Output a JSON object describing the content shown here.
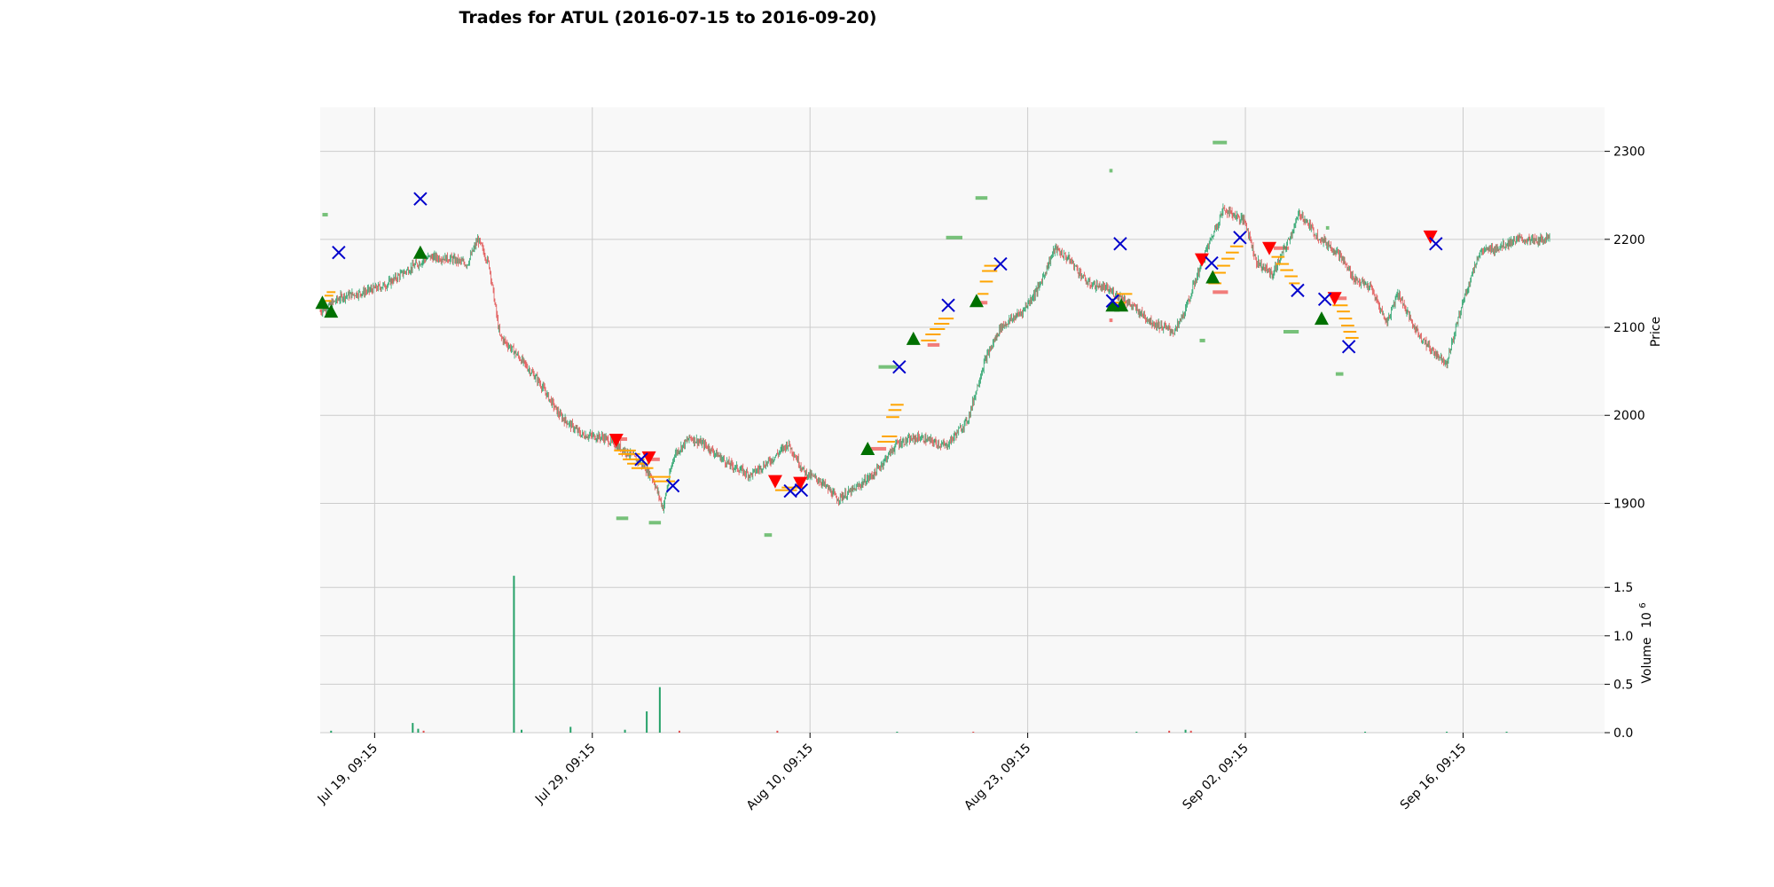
{
  "chart_data": {
    "type": "candlestick",
    "title": "Trades for ATUL (2016-07-15 to 2016-09-20)",
    "colors": {
      "up": "#26a269",
      "down": "#e05050",
      "buy_marker": "#007000",
      "sell_marker": "#ff0000",
      "exit_marker": "#0000cc",
      "level_line": "#ffa500",
      "zone_green": "#4caf50",
      "zone_red": "#ef5350",
      "panel_bg": "#f8f8f8",
      "grid": "#cccccc"
    },
    "x_axis": {
      "tick_labels": [
        "Jul 19, 09:15",
        "Jul 29, 09:15",
        "Aug 10, 09:15",
        "Aug 23, 09:15",
        "Sep 02, 09:15",
        "Sep 16, 09:15"
      ],
      "tick_positions": [
        0.5,
        2.5,
        4.5,
        6.5,
        8.5,
        10.5
      ],
      "range": [
        0,
        11.8
      ]
    },
    "price_panel": {
      "ylabel": "Price",
      "ylim": [
        1843,
        2350
      ],
      "yticks": [
        1900,
        2000,
        2100,
        2200,
        2300
      ],
      "grid": true
    },
    "volume_panel": {
      "ylabel": "Volume  10^6",
      "ylabel_main": "Volume",
      "ylabel_exp": "10",
      "ylabel_sup": "6",
      "ylim": [
        0,
        1.85
      ],
      "yticks": [
        "0.0",
        "0.5",
        "1.0",
        "1.5"
      ],
      "ytick_values": [
        0,
        0.5,
        1.0,
        1.5
      ],
      "grid": true
    },
    "price_path": [
      [
        0.0,
        2118
      ],
      [
        0.2,
        2135
      ],
      [
        0.4,
        2140
      ],
      [
        0.6,
        2148
      ],
      [
        0.8,
        2165
      ],
      [
        1.0,
        2180
      ],
      [
        1.2,
        2178
      ],
      [
        1.35,
        2172
      ],
      [
        1.45,
        2200
      ],
      [
        1.55,
        2172
      ],
      [
        1.65,
        2090
      ],
      [
        1.8,
        2070
      ],
      [
        2.0,
        2040
      ],
      [
        2.2,
        2000
      ],
      [
        2.4,
        1978
      ],
      [
        2.6,
        1975
      ],
      [
        2.8,
        1960
      ],
      [
        2.95,
        1945
      ],
      [
        3.05,
        1930
      ],
      [
        3.15,
        1895
      ],
      [
        3.25,
        1955
      ],
      [
        3.4,
        1975
      ],
      [
        3.55,
        1965
      ],
      [
        3.75,
        1945
      ],
      [
        3.95,
        1932
      ],
      [
        4.15,
        1950
      ],
      [
        4.3,
        1968
      ],
      [
        4.45,
        1935
      ],
      [
        4.6,
        1925
      ],
      [
        4.75,
        1905
      ],
      [
        4.9,
        1915
      ],
      [
        5.1,
        1935
      ],
      [
        5.3,
        1968
      ],
      [
        5.5,
        1975
      ],
      [
        5.75,
        1965
      ],
      [
        5.95,
        1995
      ],
      [
        6.1,
        2060
      ],
      [
        6.25,
        2100
      ],
      [
        6.45,
        2118
      ],
      [
        6.6,
        2145
      ],
      [
        6.75,
        2190
      ],
      [
        6.9,
        2175
      ],
      [
        7.05,
        2150
      ],
      [
        7.2,
        2145
      ],
      [
        7.35,
        2135
      ],
      [
        7.5,
        2120
      ],
      [
        7.65,
        2105
      ],
      [
        7.85,
        2095
      ],
      [
        7.95,
        2120
      ],
      [
        8.1,
        2175
      ],
      [
        8.3,
        2235
      ],
      [
        8.5,
        2220
      ],
      [
        8.6,
        2175
      ],
      [
        8.75,
        2160
      ],
      [
        8.9,
        2200
      ],
      [
        9.0,
        2230
      ],
      [
        9.15,
        2205
      ],
      [
        9.35,
        2185
      ],
      [
        9.5,
        2155
      ],
      [
        9.65,
        2145
      ],
      [
        9.8,
        2105
      ],
      [
        9.9,
        2140
      ],
      [
        10.05,
        2100
      ],
      [
        10.2,
        2075
      ],
      [
        10.35,
        2060
      ],
      [
        10.5,
        2130
      ],
      [
        10.65,
        2185
      ],
      [
        10.8,
        2190
      ],
      [
        11.0,
        2200
      ],
      [
        11.2,
        2198
      ],
      [
        11.3,
        2205
      ]
    ],
    "volume_bars": [
      {
        "x": 0.1,
        "v": 0.02,
        "dir": "up"
      },
      {
        "x": 0.85,
        "v": 0.1,
        "dir": "up"
      },
      {
        "x": 0.9,
        "v": 0.04,
        "dir": "up"
      },
      {
        "x": 0.95,
        "v": 0.02,
        "dir": "down"
      },
      {
        "x": 1.78,
        "v": 1.62,
        "dir": "up"
      },
      {
        "x": 1.85,
        "v": 0.03,
        "dir": "up"
      },
      {
        "x": 2.3,
        "v": 0.06,
        "dir": "up"
      },
      {
        "x": 2.8,
        "v": 0.03,
        "dir": "up"
      },
      {
        "x": 3.0,
        "v": 0.22,
        "dir": "up"
      },
      {
        "x": 3.12,
        "v": 0.47,
        "dir": "up"
      },
      {
        "x": 3.3,
        "v": 0.02,
        "dir": "down"
      },
      {
        "x": 4.2,
        "v": 0.02,
        "dir": "down"
      },
      {
        "x": 5.3,
        "v": 0.01,
        "dir": "up"
      },
      {
        "x": 6.0,
        "v": 0.01,
        "dir": "down"
      },
      {
        "x": 7.5,
        "v": 0.01,
        "dir": "up"
      },
      {
        "x": 7.8,
        "v": 0.02,
        "dir": "down"
      },
      {
        "x": 7.95,
        "v": 0.03,
        "dir": "up"
      },
      {
        "x": 8.0,
        "v": 0.02,
        "dir": "down"
      },
      {
        "x": 9.6,
        "v": 0.01,
        "dir": "up"
      },
      {
        "x": 10.35,
        "v": 0.01,
        "dir": "up"
      },
      {
        "x": 10.9,
        "v": 0.01,
        "dir": "up"
      }
    ],
    "buy_markers": [
      {
        "x": 0.02,
        "y": 2128
      },
      {
        "x": 0.1,
        "y": 2118
      },
      {
        "x": 0.92,
        "y": 2185
      },
      {
        "x": 5.03,
        "y": 1962
      },
      {
        "x": 5.45,
        "y": 2087
      },
      {
        "x": 6.03,
        "y": 2130
      },
      {
        "x": 7.28,
        "y": 2125
      },
      {
        "x": 7.36,
        "y": 2125
      },
      {
        "x": 8.2,
        "y": 2157
      },
      {
        "x": 9.2,
        "y": 2110
      }
    ],
    "sell_markers": [
      {
        "x": 2.72,
        "y": 1972
      },
      {
        "x": 3.02,
        "y": 1952
      },
      {
        "x": 4.18,
        "y": 1925
      },
      {
        "x": 4.41,
        "y": 1923
      },
      {
        "x": 8.1,
        "y": 2177
      },
      {
        "x": 8.72,
        "y": 2190
      },
      {
        "x": 9.32,
        "y": 2133
      },
      {
        "x": 10.2,
        "y": 2203
      }
    ],
    "exit_markers": [
      {
        "x": 0.17,
        "y": 2185
      },
      {
        "x": 0.92,
        "y": 2246
      },
      {
        "x": 2.95,
        "y": 1950
      },
      {
        "x": 3.24,
        "y": 1920
      },
      {
        "x": 4.32,
        "y": 1914
      },
      {
        "x": 4.42,
        "y": 1915
      },
      {
        "x": 5.32,
        "y": 2055
      },
      {
        "x": 5.77,
        "y": 2125
      },
      {
        "x": 6.25,
        "y": 2172
      },
      {
        "x": 7.28,
        "y": 2130
      },
      {
        "x": 7.35,
        "y": 2195
      },
      {
        "x": 8.19,
        "y": 2173
      },
      {
        "x": 8.45,
        "y": 2202
      },
      {
        "x": 8.98,
        "y": 2142
      },
      {
        "x": 9.23,
        "y": 2132
      },
      {
        "x": 9.45,
        "y": 2078
      },
      {
        "x": 10.25,
        "y": 2195
      }
    ],
    "level_lines": [
      {
        "x0": 0.02,
        "x1": 0.1,
        "y": 2130
      },
      {
        "x0": 0.04,
        "x1": 0.12,
        "y": 2136
      },
      {
        "x0": 0.06,
        "x1": 0.14,
        "y": 2140
      },
      {
        "x0": 2.7,
        "x1": 2.9,
        "y": 1960
      },
      {
        "x0": 2.74,
        "x1": 2.94,
        "y": 1956
      },
      {
        "x0": 2.78,
        "x1": 2.98,
        "y": 1950
      },
      {
        "x0": 2.82,
        "x1": 3.02,
        "y": 1945
      },
      {
        "x0": 2.86,
        "x1": 3.06,
        "y": 1940
      },
      {
        "x0": 3.02,
        "x1": 3.22,
        "y": 1930
      },
      {
        "x0": 3.06,
        "x1": 3.26,
        "y": 1925
      },
      {
        "x0": 4.18,
        "x1": 4.38,
        "y": 1915
      },
      {
        "x0": 4.24,
        "x1": 4.44,
        "y": 1918
      },
      {
        "x0": 5.12,
        "x1": 5.28,
        "y": 1970
      },
      {
        "x0": 5.16,
        "x1": 5.3,
        "y": 1976
      },
      {
        "x0": 5.2,
        "x1": 5.32,
        "y": 1998
      },
      {
        "x0": 5.22,
        "x1": 5.34,
        "y": 2006
      },
      {
        "x0": 5.24,
        "x1": 5.36,
        "y": 2012
      },
      {
        "x0": 5.52,
        "x1": 5.66,
        "y": 2085
      },
      {
        "x0": 5.56,
        "x1": 5.7,
        "y": 2092
      },
      {
        "x0": 5.6,
        "x1": 5.74,
        "y": 2098
      },
      {
        "x0": 5.64,
        "x1": 5.78,
        "y": 2104
      },
      {
        "x0": 5.68,
        "x1": 5.82,
        "y": 2110
      },
      {
        "x0": 6.04,
        "x1": 6.14,
        "y": 2138
      },
      {
        "x0": 6.06,
        "x1": 6.18,
        "y": 2152
      },
      {
        "x0": 6.08,
        "x1": 6.22,
        "y": 2164
      },
      {
        "x0": 6.1,
        "x1": 6.24,
        "y": 2170
      },
      {
        "x0": 7.28,
        "x1": 7.4,
        "y": 2128
      },
      {
        "x0": 7.32,
        "x1": 7.46,
        "y": 2138
      },
      {
        "x0": 8.16,
        "x1": 8.28,
        "y": 2150
      },
      {
        "x0": 8.2,
        "x1": 8.32,
        "y": 2162
      },
      {
        "x0": 8.24,
        "x1": 8.36,
        "y": 2170
      },
      {
        "x0": 8.28,
        "x1": 8.4,
        "y": 2178
      },
      {
        "x0": 8.32,
        "x1": 8.44,
        "y": 2185
      },
      {
        "x0": 8.36,
        "x1": 8.48,
        "y": 2192
      },
      {
        "x0": 8.74,
        "x1": 8.86,
        "y": 2180
      },
      {
        "x0": 8.78,
        "x1": 8.9,
        "y": 2172
      },
      {
        "x0": 8.82,
        "x1": 8.94,
        "y": 2165
      },
      {
        "x0": 8.86,
        "x1": 8.98,
        "y": 2158
      },
      {
        "x0": 8.9,
        "x1": 9.0,
        "y": 2150
      },
      {
        "x0": 9.3,
        "x1": 9.44,
        "y": 2125
      },
      {
        "x0": 9.34,
        "x1": 9.46,
        "y": 2118
      },
      {
        "x0": 9.36,
        "x1": 9.48,
        "y": 2110
      },
      {
        "x0": 9.38,
        "x1": 9.5,
        "y": 2102
      },
      {
        "x0": 9.4,
        "x1": 9.52,
        "y": 2095
      },
      {
        "x0": 9.42,
        "x1": 9.54,
        "y": 2088
      }
    ],
    "green_zones": [
      {
        "x0": 0.02,
        "x1": 0.07,
        "y": 2228
      },
      {
        "x0": 2.72,
        "x1": 2.83,
        "y": 1883
      },
      {
        "x0": 3.02,
        "x1": 3.13,
        "y": 1878
      },
      {
        "x0": 4.08,
        "x1": 4.15,
        "y": 1864
      },
      {
        "x0": 5.13,
        "x1": 5.3,
        "y": 2055
      },
      {
        "x0": 5.75,
        "x1": 5.9,
        "y": 2202
      },
      {
        "x0": 6.02,
        "x1": 6.13,
        "y": 2247
      },
      {
        "x0": 7.25,
        "x1": 7.28,
        "y": 2278
      },
      {
        "x0": 8.08,
        "x1": 8.13,
        "y": 2085
      },
      {
        "x0": 8.2,
        "x1": 8.33,
        "y": 2310
      },
      {
        "x0": 8.85,
        "x1": 8.99,
        "y": 2095
      },
      {
        "x0": 9.24,
        "x1": 9.27,
        "y": 2213
      },
      {
        "x0": 9.33,
        "x1": 9.4,
        "y": 2047
      }
    ],
    "red_zones": [
      {
        "x0": 2.72,
        "x1": 2.82,
        "y": 1973
      },
      {
        "x0": 3.02,
        "x1": 3.12,
        "y": 1950
      },
      {
        "x0": 5.06,
        "x1": 5.2,
        "y": 1962
      },
      {
        "x0": 5.58,
        "x1": 5.69,
        "y": 2080
      },
      {
        "x0": 6.0,
        "x1": 6.13,
        "y": 2128
      },
      {
        "x0": 7.25,
        "x1": 7.28,
        "y": 2108
      },
      {
        "x0": 8.2,
        "x1": 8.34,
        "y": 2140
      },
      {
        "x0": 8.76,
        "x1": 8.9,
        "y": 2190
      },
      {
        "x0": 9.34,
        "x1": 9.43,
        "y": 2133
      }
    ]
  }
}
